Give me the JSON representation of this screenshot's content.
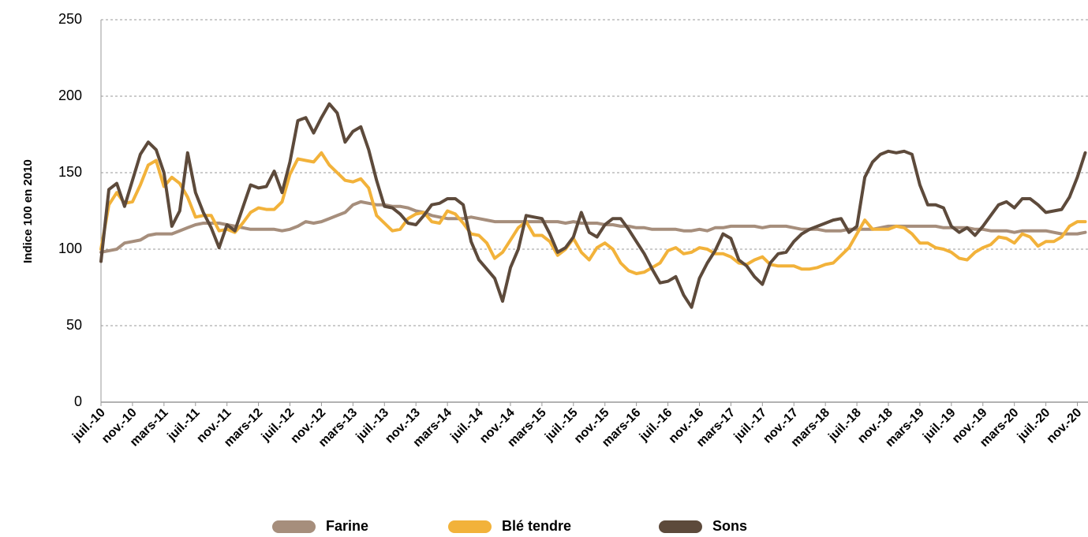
{
  "chart_data": {
    "type": "line",
    "y_label": "Indice 100 en 2010",
    "categories": [
      "juil.-10",
      null,
      null,
      null,
      "nov.-10",
      null,
      null,
      null,
      "mars-11",
      null,
      null,
      null,
      "juil.-11",
      null,
      null,
      null,
      "nov.-11",
      null,
      null,
      null,
      "mars-12",
      null,
      null,
      null,
      "juil.-12",
      null,
      null,
      null,
      "nov.-12",
      null,
      null,
      null,
      "mars-13",
      null,
      null,
      null,
      "juil.-13",
      null,
      null,
      null,
      "nov.-13",
      null,
      null,
      null,
      "mars-14",
      null,
      null,
      null,
      "juil.-14",
      null,
      null,
      null,
      "nov.-14",
      null,
      null,
      null,
      "mars-15",
      null,
      null,
      null,
      "juil.-15",
      null,
      null,
      null,
      "nov.-15",
      null,
      null,
      null,
      "mars-16",
      null,
      null,
      null,
      "juil.-16",
      null,
      null,
      null,
      "nov.-16",
      null,
      null,
      null,
      "mars-17",
      null,
      null,
      null,
      "juil.-17",
      null,
      null,
      null,
      "nov.-17",
      null,
      null,
      null,
      "mars-18",
      null,
      null,
      null,
      "juil.-18",
      null,
      null,
      null,
      "nov.-18",
      null,
      null,
      null,
      "mars-19",
      null,
      null,
      null,
      "juil.-19",
      null,
      null,
      null,
      "nov.-19",
      null,
      null,
      null,
      "mars-20",
      null,
      null,
      null,
      "juil.-20",
      null,
      null,
      null,
      "nov.-20",
      null
    ],
    "series": [
      {
        "name": "Farine",
        "color": "#a68e7c",
        "values": [
          98,
          99,
          100,
          104,
          105,
          106,
          109,
          110,
          110,
          110,
          112,
          114,
          116,
          117,
          117,
          117,
          116,
          115,
          114,
          113,
          113,
          113,
          113,
          112,
          113,
          115,
          118,
          117,
          118,
          120,
          122,
          124,
          129,
          131,
          130,
          129,
          129,
          128,
          128,
          127,
          125,
          124,
          122,
          121,
          120,
          120,
          120,
          121,
          120,
          119,
          118,
          118,
          118,
          118,
          118,
          118,
          118,
          118,
          118,
          117,
          118,
          117,
          117,
          117,
          116,
          116,
          115,
          115,
          114,
          114,
          113,
          113,
          113,
          113,
          112,
          112,
          113,
          112,
          114,
          114,
          115,
          115,
          115,
          115,
          114,
          115,
          115,
          115,
          114,
          113,
          113,
          113,
          112,
          112,
          112,
          113,
          113,
          113,
          113,
          114,
          115,
          115,
          115,
          115,
          115,
          115,
          115,
          114,
          114,
          114,
          114,
          113,
          113,
          112,
          112,
          112,
          111,
          112,
          112,
          112,
          112,
          111,
          110,
          110,
          110,
          111
        ]
      },
      {
        "name": "Blé tendre",
        "color": "#f2b23a",
        "values": [
          100,
          129,
          137,
          130,
          131,
          142,
          155,
          158,
          141,
          147,
          143,
          134,
          121,
          122,
          122,
          112,
          113,
          111,
          117,
          124,
          127,
          126,
          126,
          131,
          149,
          159,
          158,
          157,
          163,
          155,
          150,
          145,
          144,
          146,
          140,
          122,
          117,
          112,
          113,
          120,
          123,
          124,
          118,
          117,
          125,
          123,
          117,
          110,
          109,
          104,
          94,
          98,
          106,
          114,
          118,
          109,
          109,
          105,
          96,
          100,
          107,
          98,
          93,
          101,
          104,
          100,
          91,
          86,
          84,
          85,
          88,
          91,
          99,
          101,
          97,
          98,
          101,
          100,
          97,
          97,
          95,
          91,
          90,
          93,
          95,
          90,
          89,
          89,
          89,
          87,
          87,
          88,
          90,
          91,
          96,
          101,
          110,
          119,
          113,
          113,
          113,
          115,
          114,
          110,
          104,
          104,
          101,
          100,
          98,
          94,
          93,
          98,
          101,
          103,
          108,
          107,
          104,
          110,
          108,
          102,
          105,
          105,
          108,
          115,
          118,
          118
        ]
      },
      {
        "name": "Sons",
        "color": "#5d4a3b",
        "values": [
          92,
          139,
          143,
          128,
          145,
          162,
          170,
          165,
          150,
          115,
          125,
          163,
          137,
          124,
          114,
          101,
          116,
          112,
          127,
          142,
          140,
          141,
          151,
          137,
          157,
          184,
          186,
          176,
          186,
          195,
          189,
          170,
          177,
          180,
          165,
          145,
          128,
          127,
          123,
          117,
          116,
          122,
          129,
          130,
          133,
          133,
          129,
          105,
          93,
          87,
          81,
          66,
          88,
          100,
          122,
          121,
          120,
          110,
          98,
          101,
          108,
          124,
          111,
          108,
          116,
          120,
          120,
          113,
          105,
          97,
          87,
          78,
          79,
          82,
          70,
          62,
          81,
          91,
          99,
          110,
          107,
          93,
          89,
          82,
          77,
          91,
          97,
          98,
          105,
          110,
          113,
          115,
          117,
          119,
          120,
          111,
          115,
          147,
          157,
          162,
          164,
          163,
          164,
          162,
          142,
          129,
          129,
          127,
          115,
          111,
          114,
          109,
          115,
          122,
          129,
          131,
          127,
          133,
          133,
          129,
          124,
          125,
          126,
          134,
          147,
          163
        ]
      }
    ],
    "ylim": [
      0,
      250
    ],
    "yticks": [
      0,
      50,
      100,
      150,
      200,
      250
    ],
    "grid": true,
    "legend": "bottom"
  }
}
